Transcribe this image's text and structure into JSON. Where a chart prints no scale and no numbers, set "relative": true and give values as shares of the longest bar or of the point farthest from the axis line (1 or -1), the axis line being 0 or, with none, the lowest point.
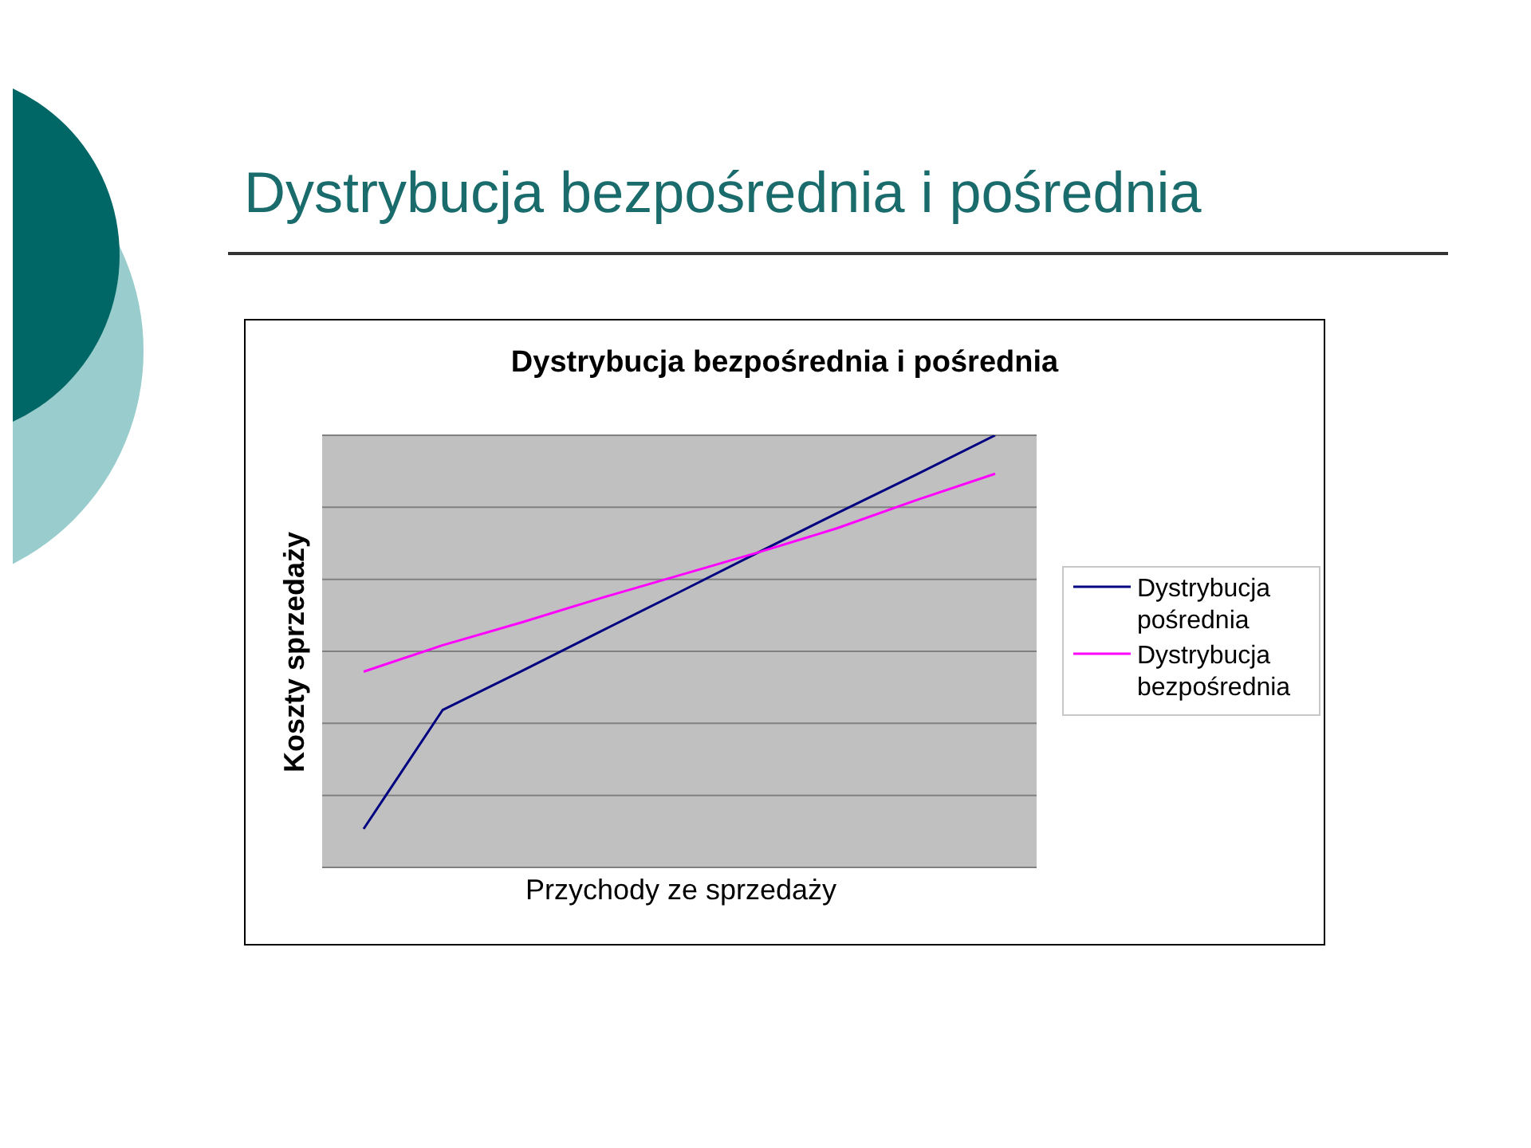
{
  "chart_data": {
    "type": "line",
    "title": "Dystrybucja bezpośrednia i pośrednia",
    "subtitle": "Dystrybucja bezpośrednia i pośrednia",
    "xlabel": "Przychody ze sprzedaży",
    "ylabel": "Koszty sprzedaży",
    "relative": true,
    "categories": [
      null,
      null,
      null,
      null,
      null,
      null,
      null,
      null,
      null
    ],
    "series": [
      {
        "name": "Dystrybucja pośrednia",
        "color": "#000080",
        "values": [
          0.089,
          0.364,
          0.454,
          0.546,
          0.637,
          0.729,
          0.82,
          0.909,
          1
        ]
      },
      {
        "name": "Dystrybucja bezpośrednia",
        "color": "#ff00ff",
        "values": [
          0.453,
          0.514,
          0.567,
          0.623,
          0.676,
          0.729,
          0.785,
          0.85,
          0.911
        ]
      }
    ],
    "grid": "y",
    "legend": "right",
    "marker": "none"
  }
}
